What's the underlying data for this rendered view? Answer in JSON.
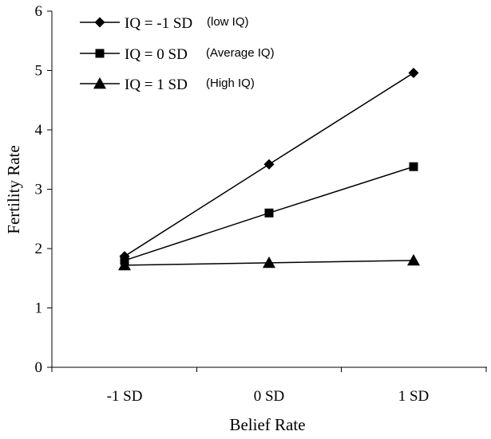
{
  "chart_data": {
    "type": "line",
    "title": "",
    "xlabel": "Belief Rate",
    "ylabel": "Fertility Rate",
    "categories": [
      "-1 SD",
      "0 SD",
      "1 SD"
    ],
    "ylim": [
      0,
      6
    ],
    "yticks": [
      "0",
      "1",
      "2",
      "3",
      "4",
      "5",
      "6"
    ],
    "grid": false,
    "legend_position": "top-left",
    "series": [
      {
        "name_main": "IQ = -1 SD",
        "name_note": "(low IQ)",
        "marker": "diamond",
        "values": [
          1.87,
          3.42,
          4.96
        ]
      },
      {
        "name_main": "IQ = 0 SD",
        "name_note": "(Average IQ)",
        "marker": "square",
        "values": [
          1.8,
          2.6,
          3.38
        ]
      },
      {
        "name_main": "IQ = 1 SD",
        "name_note": "(High IQ)",
        "marker": "triangle",
        "values": [
          1.72,
          1.76,
          1.8
        ]
      }
    ],
    "line_color": "#000000"
  }
}
